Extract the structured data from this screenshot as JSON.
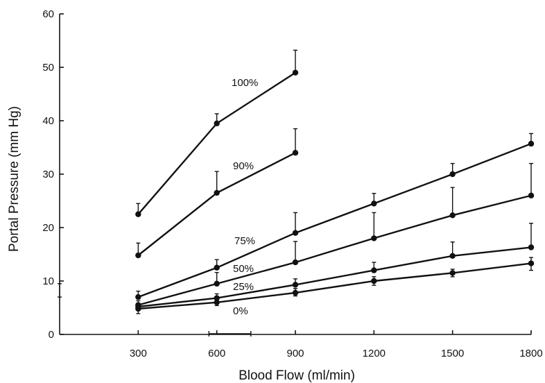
{
  "chart_data": {
    "type": "line",
    "xlabel": "Blood Flow (ml/min)",
    "ylabel": "Portal Pressure (mm Hg)",
    "xlim": [
      0,
      1800
    ],
    "ylim": [
      0,
      60
    ],
    "x_ticks": [
      "300",
      "600",
      "900",
      "1200",
      "1500",
      "1800"
    ],
    "y_ticks": [
      "0",
      "10",
      "20",
      "30",
      "40",
      "50",
      "60"
    ],
    "grid": false,
    "series": [
      {
        "name": "100%",
        "x": [
          300,
          600,
          900
        ],
        "values": [
          22.5,
          39.5,
          49
        ],
        "error_upper": [
          24.5,
          41.3,
          53.2
        ]
      },
      {
        "name": "90%",
        "x": [
          300,
          600,
          900
        ],
        "values": [
          14.8,
          26.5,
          34
        ],
        "error_upper": [
          17.1,
          30.5,
          38.5
        ]
      },
      {
        "name": "75%",
        "x": [
          300,
          600,
          900,
          1200,
          1500,
          1800
        ],
        "values": [
          7,
          12.5,
          19,
          24.5,
          30,
          35.7
        ],
        "error_upper": [
          8.1,
          14,
          22.8,
          26.4,
          32,
          37.6
        ]
      },
      {
        "name": "50%",
        "x": [
          300,
          600,
          900,
          1200,
          1500,
          1800
        ],
        "values": [
          5.5,
          9.5,
          13.5,
          18,
          22.3,
          26
        ],
        "error_upper": [
          6.3,
          11.6,
          17.4,
          22.8,
          27.5,
          32
        ]
      },
      {
        "name": "25%",
        "x": [
          300,
          600,
          900,
          1200,
          1500,
          1800
        ],
        "values": [
          5.2,
          6.8,
          9.3,
          12,
          14.7,
          16.3
        ],
        "error_upper": [
          5.8,
          7.6,
          10.4,
          13.5,
          17.3,
          20.8
        ]
      },
      {
        "name": "0%",
        "x": [
          300,
          600,
          900,
          1200,
          1500,
          1800
        ],
        "values": [
          4.8,
          6,
          7.8,
          10,
          11.5,
          13.3
        ],
        "error_upper": [
          5.4,
          6.7,
          8.6,
          10.8,
          12.2,
          14.4
        ],
        "error_lower": [
          3.9,
          5.4,
          7.2,
          9.2,
          10.8,
          12
        ]
      }
    ],
    "annotations": {
      "y_axis_range_marker": {
        "low": 7,
        "high": 9.5
      },
      "x_axis_range_marker": {
        "low": 570,
        "high": 730
      }
    }
  }
}
